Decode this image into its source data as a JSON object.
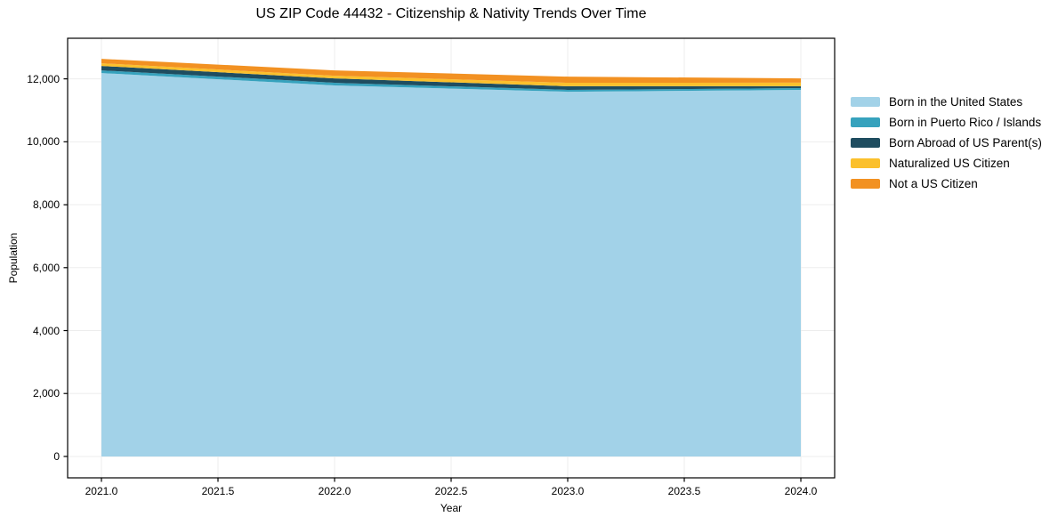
{
  "title": "US ZIP Code 44432 - Citizenship & Nativity Trends Over Time",
  "chart_data": {
    "type": "area",
    "stacked": true,
    "title": "US ZIP Code 44432 - Citizenship & Nativity Trends Over Time",
    "xlabel": "Year",
    "ylabel": "Population",
    "x": [
      2021,
      2022,
      2023,
      2024
    ],
    "series": [
      {
        "name": "Born in the United States",
        "color": "#a2d2e8",
        "values": [
          12185,
          11790,
          11590,
          11650
        ]
      },
      {
        "name": "Born in Puerto Rico / Islands",
        "color": "#36a2bd",
        "values": [
          85,
          85,
          60,
          55
        ]
      },
      {
        "name": "Born Abroad of US Parent(s)",
        "color": "#1f4d60",
        "values": [
          140,
          140,
          115,
          60
        ]
      },
      {
        "name": "Naturalized US Citizen",
        "color": "#fbc02c",
        "values": [
          85,
          85,
          110,
          115
        ]
      },
      {
        "name": "Not a US Citizen",
        "color": "#f29122",
        "values": [
          140,
          170,
          195,
          135
        ]
      }
    ],
    "x_ticks": [
      "2021.0",
      "2021.5",
      "2022.0",
      "2022.5",
      "2023.0",
      "2023.5",
      "2024.0"
    ],
    "x_tick_values": [
      2021,
      2021.5,
      2022,
      2022.5,
      2023,
      2023.5,
      2024
    ],
    "y_ticks": [
      "0",
      "2,000",
      "4,000",
      "6,000",
      "8,000",
      "10,000",
      "12,000"
    ],
    "y_tick_values": [
      0,
      2000,
      4000,
      6000,
      8000,
      10000,
      12000
    ],
    "xlim": [
      2020.855,
      2024.145
    ],
    "ylim": [
      -680,
      13290
    ],
    "grid": true,
    "grid_color": "#ededed",
    "spine_color": "#000000",
    "legend_position": "right outside"
  }
}
